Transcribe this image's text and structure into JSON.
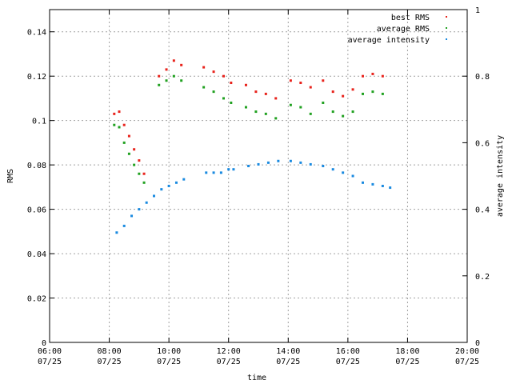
{
  "chart_data": {
    "type": "scatter",
    "xlabel": "time",
    "ylabel": "RMS",
    "y2label": "average intensity",
    "xlim": [
      "06:00",
      "20:00"
    ],
    "ylim": [
      0,
      0.15
    ],
    "y2lim": [
      0,
      1
    ],
    "grid": true,
    "legend_position": "top-right",
    "x_ticks": [
      {
        "time": "06:00",
        "date": "07/25"
      },
      {
        "time": "08:00",
        "date": "07/25"
      },
      {
        "time": "10:00",
        "date": "07/25"
      },
      {
        "time": "12:00",
        "date": "07/25"
      },
      {
        "time": "14:00",
        "date": "07/25"
      },
      {
        "time": "16:00",
        "date": "07/25"
      },
      {
        "time": "18:00",
        "date": "07/25"
      },
      {
        "time": "20:00",
        "date": "07/25"
      }
    ],
    "y_ticks": [
      "0",
      "0.02",
      "0.04",
      "0.06",
      "0.08",
      "0.1",
      "0.12",
      "0.14"
    ],
    "y2_ticks": [
      "0",
      "0.2",
      "0.4",
      "0.6",
      "0.8",
      "1"
    ],
    "series": [
      {
        "name": "best RMS",
        "axis": "y",
        "color": "#e8231c",
        "points": [
          {
            "x": "08:10",
            "y": 0.103
          },
          {
            "x": "08:20",
            "y": 0.104
          },
          {
            "x": "08:30",
            "y": 0.098
          },
          {
            "x": "08:40",
            "y": 0.093
          },
          {
            "x": "08:50",
            "y": 0.087
          },
          {
            "x": "09:00",
            "y": 0.082
          },
          {
            "x": "09:10",
            "y": 0.076
          },
          {
            "x": "09:40",
            "y": 0.12
          },
          {
            "x": "09:55",
            "y": 0.123
          },
          {
            "x": "10:10",
            "y": 0.127
          },
          {
            "x": "10:25",
            "y": 0.125
          },
          {
            "x": "11:10",
            "y": 0.124
          },
          {
            "x": "11:30",
            "y": 0.122
          },
          {
            "x": "11:50",
            "y": 0.12
          },
          {
            "x": "12:05",
            "y": 0.117
          },
          {
            "x": "12:35",
            "y": 0.116
          },
          {
            "x": "12:55",
            "y": 0.113
          },
          {
            "x": "13:15",
            "y": 0.112
          },
          {
            "x": "13:35",
            "y": 0.11
          },
          {
            "x": "14:05",
            "y": 0.118
          },
          {
            "x": "14:25",
            "y": 0.117
          },
          {
            "x": "14:45",
            "y": 0.115
          },
          {
            "x": "15:10",
            "y": 0.118
          },
          {
            "x": "15:30",
            "y": 0.113
          },
          {
            "x": "15:50",
            "y": 0.111
          },
          {
            "x": "16:10",
            "y": 0.114
          },
          {
            "x": "16:30",
            "y": 0.12
          },
          {
            "x": "16:50",
            "y": 0.121
          },
          {
            "x": "17:10",
            "y": 0.12
          }
        ]
      },
      {
        "name": "average RMS",
        "axis": "y",
        "color": "#21a121",
        "points": [
          {
            "x": "08:10",
            "y": 0.098
          },
          {
            "x": "08:20",
            "y": 0.097
          },
          {
            "x": "08:30",
            "y": 0.09
          },
          {
            "x": "08:40",
            "y": 0.085
          },
          {
            "x": "08:50",
            "y": 0.08
          },
          {
            "x": "09:00",
            "y": 0.076
          },
          {
            "x": "09:10",
            "y": 0.072
          },
          {
            "x": "09:40",
            "y": 0.116
          },
          {
            "x": "09:55",
            "y": 0.118
          },
          {
            "x": "10:10",
            "y": 0.12
          },
          {
            "x": "10:25",
            "y": 0.118
          },
          {
            "x": "11:10",
            "y": 0.115
          },
          {
            "x": "11:30",
            "y": 0.113
          },
          {
            "x": "11:50",
            "y": 0.11
          },
          {
            "x": "12:05",
            "y": 0.108
          },
          {
            "x": "12:35",
            "y": 0.106
          },
          {
            "x": "12:55",
            "y": 0.104
          },
          {
            "x": "13:15",
            "y": 0.103
          },
          {
            "x": "13:35",
            "y": 0.101
          },
          {
            "x": "14:05",
            "y": 0.107
          },
          {
            "x": "14:25",
            "y": 0.106
          },
          {
            "x": "14:45",
            "y": 0.103
          },
          {
            "x": "15:10",
            "y": 0.108
          },
          {
            "x": "15:30",
            "y": 0.104
          },
          {
            "x": "15:50",
            "y": 0.102
          },
          {
            "x": "16:10",
            "y": 0.104
          },
          {
            "x": "16:30",
            "y": 0.112
          },
          {
            "x": "16:50",
            "y": 0.113
          },
          {
            "x": "17:10",
            "y": 0.112
          }
        ]
      },
      {
        "name": "average intensity",
        "axis": "y2",
        "color": "#1a8ae0",
        "points": [
          {
            "x": "08:15",
            "y": 0.33
          },
          {
            "x": "08:30",
            "y": 0.35
          },
          {
            "x": "08:45",
            "y": 0.38
          },
          {
            "x": "09:00",
            "y": 0.4
          },
          {
            "x": "09:15",
            "y": 0.42
          },
          {
            "x": "09:30",
            "y": 0.44
          },
          {
            "x": "09:45",
            "y": 0.46
          },
          {
            "x": "10:00",
            "y": 0.47
          },
          {
            "x": "10:15",
            "y": 0.48
          },
          {
            "x": "10:30",
            "y": 0.49
          },
          {
            "x": "11:15",
            "y": 0.51
          },
          {
            "x": "11:30",
            "y": 0.51
          },
          {
            "x": "11:45",
            "y": 0.51
          },
          {
            "x": "12:00",
            "y": 0.52
          },
          {
            "x": "12:10",
            "y": 0.52
          },
          {
            "x": "12:40",
            "y": 0.53
          },
          {
            "x": "13:00",
            "y": 0.535
          },
          {
            "x": "13:20",
            "y": 0.54
          },
          {
            "x": "13:40",
            "y": 0.545
          },
          {
            "x": "14:05",
            "y": 0.545
          },
          {
            "x": "14:25",
            "y": 0.54
          },
          {
            "x": "14:45",
            "y": 0.535
          },
          {
            "x": "15:10",
            "y": 0.53
          },
          {
            "x": "15:30",
            "y": 0.52
          },
          {
            "x": "15:50",
            "y": 0.51
          },
          {
            "x": "16:10",
            "y": 0.5
          },
          {
            "x": "16:30",
            "y": 0.48
          },
          {
            "x": "16:50",
            "y": 0.475
          },
          {
            "x": "17:10",
            "y": 0.47
          },
          {
            "x": "17:25",
            "y": 0.465
          }
        ]
      }
    ]
  }
}
